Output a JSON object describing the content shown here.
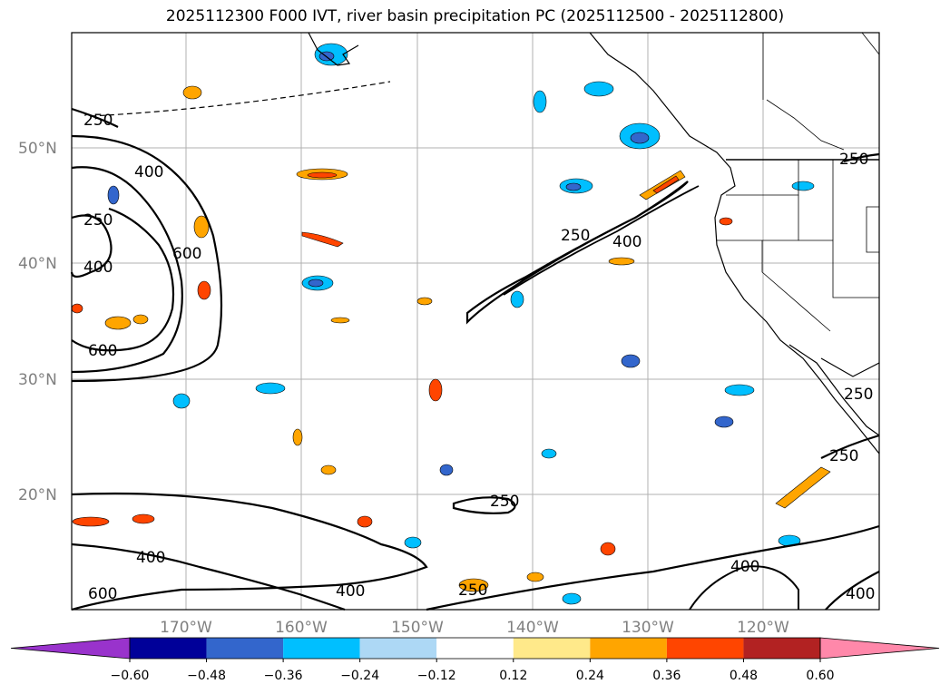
{
  "title": "2025112300 F000 IVT, river basin precipitation PC (2025112500 - 2025112800)",
  "lat_labels": [
    "50°N",
    "40°N",
    "30°N",
    "20°N"
  ],
  "lon_labels": [
    "170°W",
    "160°W",
    "150°W",
    "140°W",
    "130°W",
    "120°W"
  ],
  "contour_levels": [
    "250",
    "400",
    "600"
  ],
  "colorbar": {
    "ticks": [
      "−0.60",
      "−0.48",
      "−0.36",
      "−0.24",
      "−0.12",
      "0.12",
      "0.24",
      "0.36",
      "0.48",
      "0.60"
    ],
    "colors": [
      "#9933cc",
      "#000099",
      "#3366cc",
      "#00bfff",
      "#add8f5",
      "#ffffff",
      "#ffe98a",
      "#ffa500",
      "#ff4500",
      "#b22222",
      "#ff88aa"
    ]
  },
  "colors": {
    "contour": "#000000",
    "grid": "#b0b0b0",
    "coast": "#000000",
    "neg_light": "#00bfff",
    "neg_mid": "#3366cc",
    "pos_mid": "#ffa500",
    "pos_high": "#ff4500"
  }
}
